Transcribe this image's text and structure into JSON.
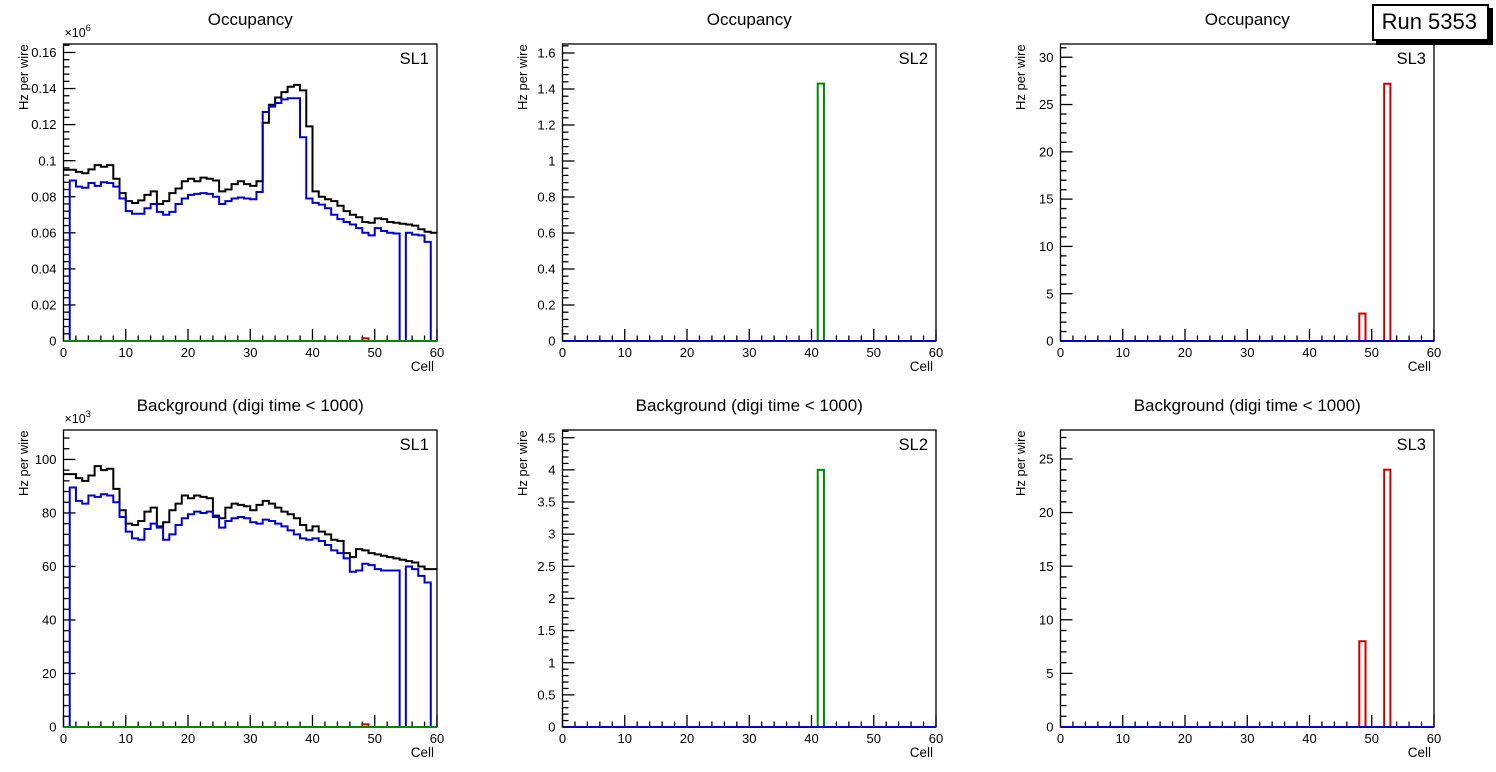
{
  "run_badge": {
    "label": "Run 5353"
  },
  "colors": {
    "frame": "#000000",
    "text": "#000000",
    "black_series": "#000000",
    "blue_series": "#0000cc",
    "green_series": "#008a00",
    "red_series": "#cc0000"
  },
  "chart_data": [
    {
      "type": "histogram",
      "title": "Occupancy",
      "panel_label": "SL1",
      "xlabel": "Cell",
      "ylabel": "Hz per wire",
      "y_scale_prefix": "×10",
      "y_scale_exp": "6",
      "xlim": [
        0,
        60
      ],
      "ylim": [
        0,
        0.1647
      ],
      "x_major_step": 10,
      "x_minor_step": 2,
      "x_tick_labels": [
        "0",
        "10",
        "20",
        "30",
        "40",
        "50",
        "60"
      ],
      "y_major_step": 0.02,
      "y_minor_step": 0.004,
      "y_tick_labels": [
        "0",
        "0.02",
        "0.04",
        "0.06",
        "0.08",
        "0.1",
        "0.12",
        "0.14",
        "0.16"
      ],
      "series": [
        {
          "name": "series-black",
          "color": "#000000",
          "style": "step",
          "values": [
            0.095,
            0.095,
            0.0938,
            0.093,
            0.0952,
            0.0975,
            0.0966,
            0.0975,
            0.09,
            0.082,
            0.0776,
            0.0765,
            0.078,
            0.081,
            0.083,
            0.076,
            0.0776,
            0.082,
            0.0846,
            0.0886,
            0.09,
            0.0886,
            0.0906,
            0.09,
            0.089,
            0.083,
            0.084,
            0.087,
            0.0886,
            0.087,
            0.086,
            0.0886,
            0.121,
            0.131,
            0.135,
            0.138,
            0.141,
            0.142,
            0.139,
            0.119,
            0.083,
            0.08,
            0.0786,
            0.0776,
            0.075,
            0.072,
            0.07,
            0.0686,
            0.066,
            0.0656,
            0.068,
            0.0676,
            0.066,
            0.0656,
            0.065,
            0.0646,
            0.064,
            0.062,
            0.0606,
            0.06
          ]
        },
        {
          "name": "series-red",
          "color": "#cc0000",
          "style": "bars",
          "bars": [
            {
              "from": 48,
              "to": 49,
              "value": 0.0015
            }
          ]
        },
        {
          "name": "series-blue",
          "color": "#0000cc",
          "style": "step",
          "values": [
            0,
            0.089,
            0.0856,
            0.085,
            0.0876,
            0.086,
            0.088,
            0.0876,
            0.0856,
            0.079,
            0.072,
            0.0706,
            0.0706,
            0.0736,
            0.076,
            0.0716,
            0.07,
            0.0716,
            0.076,
            0.079,
            0.081,
            0.0816,
            0.082,
            0.0816,
            0.08,
            0.076,
            0.0776,
            0.079,
            0.0796,
            0.079,
            0.0786,
            0.0826,
            0.127,
            0.13,
            0.132,
            0.134,
            0.1346,
            0.1346,
            0.113,
            0.079,
            0.0766,
            0.0756,
            0.0736,
            0.07,
            0.0676,
            0.066,
            0.0646,
            0.0626,
            0.06,
            0.0586,
            0.0626,
            0.061,
            0.06,
            0.0596,
            0,
            0.06,
            0.059,
            0.0586,
            0.055,
            0
          ]
        },
        {
          "name": "series-green",
          "color": "#008a00",
          "style": "flat-zero"
        }
      ]
    },
    {
      "type": "histogram",
      "title": "Occupancy",
      "panel_label": "SL2",
      "xlabel": "Cell",
      "ylabel": "Hz per wire",
      "y_scale_prefix": null,
      "y_scale_exp": null,
      "xlim": [
        0,
        60
      ],
      "ylim": [
        0,
        1.65
      ],
      "x_major_step": 10,
      "x_minor_step": 2,
      "x_tick_labels": [
        "0",
        "10",
        "20",
        "30",
        "40",
        "50",
        "60"
      ],
      "y_major_step": 0.2,
      "y_minor_step": 0.04,
      "y_tick_labels": [
        "0",
        "0.2",
        "0.4",
        "0.6",
        "0.8",
        "1",
        "1.2",
        "1.4",
        "1.6"
      ],
      "series": [
        {
          "name": "series-green",
          "color": "#008a00",
          "style": "bars",
          "bars": [
            {
              "from": 41,
              "to": 42,
              "value": 1.43
            }
          ]
        },
        {
          "name": "series-blue",
          "color": "#0000cc",
          "style": "flat-zero"
        }
      ]
    },
    {
      "type": "histogram",
      "title": "Occupancy",
      "panel_label": "SL3",
      "xlabel": "Cell",
      "ylabel": "Hz per wire",
      "y_scale_prefix": null,
      "y_scale_exp": null,
      "xlim": [
        0,
        60
      ],
      "ylim": [
        0,
        31.4
      ],
      "x_major_step": 10,
      "x_minor_step": 2,
      "x_tick_labels": [
        "0",
        "10",
        "20",
        "30",
        "40",
        "50",
        "60"
      ],
      "y_major_step": 5,
      "y_minor_step": 1,
      "y_tick_labels": [
        "0",
        "5",
        "10",
        "15",
        "20",
        "25",
        "30"
      ],
      "series": [
        {
          "name": "series-red",
          "color": "#cc0000",
          "style": "bars",
          "bars": [
            {
              "from": 48,
              "to": 49,
              "value": 2.9
            },
            {
              "from": 52,
              "to": 53,
              "value": 27.2
            }
          ]
        },
        {
          "name": "series-blue",
          "color": "#0000cc",
          "style": "flat-zero"
        }
      ]
    },
    {
      "type": "histogram",
      "title": "Background (digi time < 1000)",
      "panel_label": "SL1",
      "xlabel": "Cell",
      "ylabel": "Hz per wire",
      "y_scale_prefix": "×10",
      "y_scale_exp": "3",
      "xlim": [
        0,
        60
      ],
      "ylim": [
        0,
        111
      ],
      "x_major_step": 10,
      "x_minor_step": 2,
      "x_tick_labels": [
        "0",
        "10",
        "20",
        "30",
        "40",
        "50",
        "60"
      ],
      "y_major_step": 20,
      "y_minor_step": 4,
      "y_tick_labels": [
        "0",
        "20",
        "40",
        "60",
        "80",
        "100"
      ],
      "series": [
        {
          "name": "series-black",
          "color": "#000000",
          "style": "step",
          "values": [
            94.5,
            94.5,
            93,
            92,
            94,
            97.5,
            96,
            96.5,
            89,
            81,
            76,
            75.5,
            77,
            80.5,
            82,
            75,
            76.5,
            81,
            83.5,
            86.5,
            85.5,
            86.5,
            86,
            85.5,
            79,
            78,
            82,
            83.5,
            83,
            82.5,
            81,
            83,
            84.5,
            83.5,
            82,
            80.5,
            79.5,
            78,
            75.5,
            73.5,
            75,
            73,
            72,
            70,
            69.5,
            65,
            63.5,
            66.5,
            66,
            65,
            64.5,
            64,
            63.5,
            63,
            62.5,
            62,
            61.5,
            60,
            59,
            59
          ]
        },
        {
          "name": "series-red",
          "color": "#cc0000",
          "style": "bars",
          "bars": [
            {
              "from": 48,
              "to": 49,
              "value": 1.0
            }
          ]
        },
        {
          "name": "series-blue",
          "color": "#0000cc",
          "style": "step",
          "values": [
            0,
            89.5,
            84.5,
            83.5,
            86.5,
            86,
            87,
            86.5,
            84,
            78.5,
            73,
            70.5,
            70,
            74,
            76,
            74.5,
            70,
            72,
            75.5,
            78,
            79.5,
            80.5,
            80,
            80.5,
            78.5,
            74.5,
            77,
            78,
            78.5,
            78,
            76.5,
            76,
            77.5,
            77,
            76,
            75,
            73.5,
            72,
            70.5,
            70,
            70.5,
            69.5,
            68,
            66,
            65,
            63,
            58,
            58.5,
            61,
            60.5,
            59,
            58.5,
            58.5,
            58.5,
            0,
            60,
            59,
            56.5,
            54,
            0
          ]
        },
        {
          "name": "series-green",
          "color": "#008a00",
          "style": "flat-zero"
        }
      ]
    },
    {
      "type": "histogram",
      "title": "Background (digi time < 1000)",
      "panel_label": "SL2",
      "xlabel": "Cell",
      "ylabel": "Hz per wire",
      "y_scale_prefix": null,
      "y_scale_exp": null,
      "xlim": [
        0,
        60
      ],
      "ylim": [
        0,
        4.62
      ],
      "x_major_step": 10,
      "x_minor_step": 2,
      "x_tick_labels": [
        "0",
        "10",
        "20",
        "30",
        "40",
        "50",
        "60"
      ],
      "y_major_step": 0.5,
      "y_minor_step": 0.1,
      "y_tick_labels": [
        "0",
        "0.5",
        "1",
        "1.5",
        "2",
        "2.5",
        "3",
        "3.5",
        "4",
        "4.5"
      ],
      "series": [
        {
          "name": "series-green",
          "color": "#008a00",
          "style": "bars",
          "bars": [
            {
              "from": 41,
              "to": 42,
              "value": 4.0
            }
          ]
        },
        {
          "name": "series-blue",
          "color": "#0000cc",
          "style": "flat-zero"
        }
      ]
    },
    {
      "type": "histogram",
      "title": "Background (digi time < 1000)",
      "panel_label": "SL3",
      "xlabel": "Cell",
      "ylabel": "Hz per wire",
      "y_scale_prefix": null,
      "y_scale_exp": null,
      "xlim": [
        0,
        60
      ],
      "ylim": [
        0,
        27.7
      ],
      "x_major_step": 10,
      "x_minor_step": 2,
      "x_tick_labels": [
        "0",
        "10",
        "20",
        "30",
        "40",
        "50",
        "60"
      ],
      "y_major_step": 5,
      "y_minor_step": 1,
      "y_tick_labels": [
        "0",
        "5",
        "10",
        "15",
        "20",
        "25"
      ],
      "series": [
        {
          "name": "series-red",
          "color": "#cc0000",
          "style": "bars",
          "bars": [
            {
              "from": 48,
              "to": 49,
              "value": 8.0
            },
            {
              "from": 52,
              "to": 53,
              "value": 24.0
            }
          ]
        },
        {
          "name": "series-blue",
          "color": "#0000cc",
          "style": "flat-zero"
        }
      ]
    }
  ]
}
